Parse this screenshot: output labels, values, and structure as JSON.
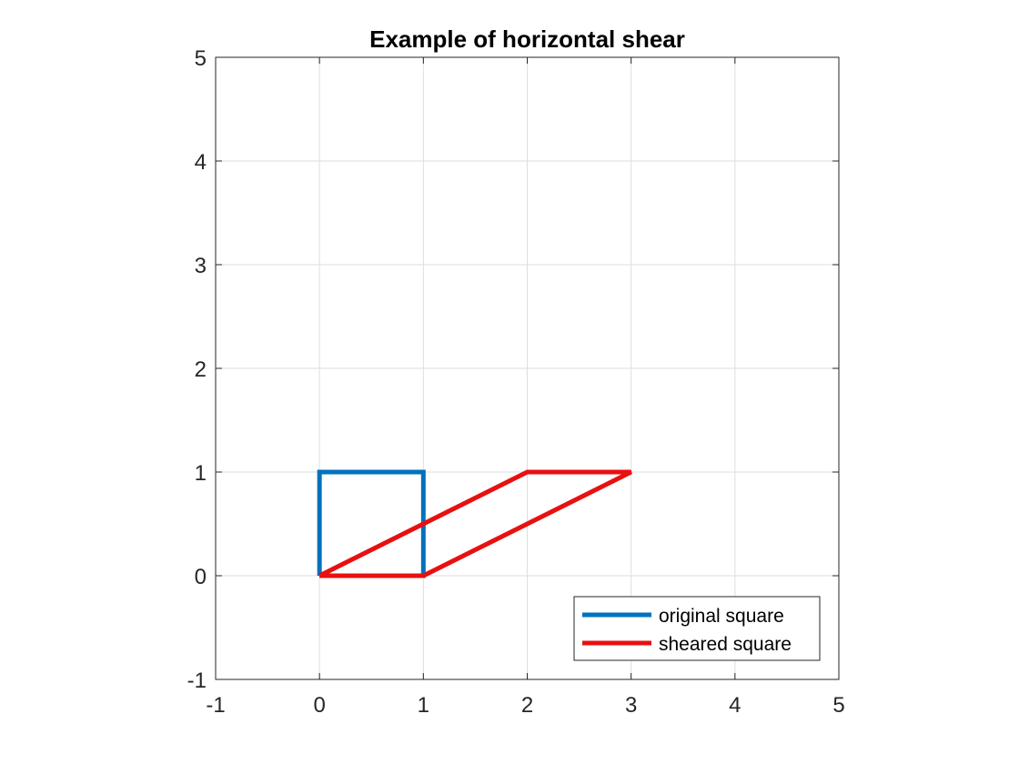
{
  "chart_data": {
    "type": "line",
    "title": "Example of horizontal shear",
    "xlabel": "",
    "ylabel": "",
    "xlim": [
      -1,
      5
    ],
    "ylim": [
      -1,
      5
    ],
    "xticks": [
      -1,
      0,
      1,
      2,
      3,
      4,
      5
    ],
    "yticks": [
      -1,
      0,
      1,
      2,
      3,
      4,
      5
    ],
    "xtick_labels": [
      "-1",
      "0",
      "1",
      "2",
      "3",
      "4",
      "5"
    ],
    "ytick_labels": [
      "-1",
      "0",
      "1",
      "2",
      "3",
      "4",
      "5"
    ],
    "grid": true,
    "legend_position": "bottom-right",
    "series": [
      {
        "name": "original square",
        "color": "#0072BD",
        "x": [
          0,
          1,
          1,
          0,
          0
        ],
        "y": [
          0,
          0,
          1,
          1,
          0
        ]
      },
      {
        "name": "sheared square",
        "color": "#E81010",
        "x": [
          0,
          1,
          3,
          2,
          0
        ],
        "y": [
          0,
          0,
          1,
          1,
          0
        ]
      }
    ]
  }
}
